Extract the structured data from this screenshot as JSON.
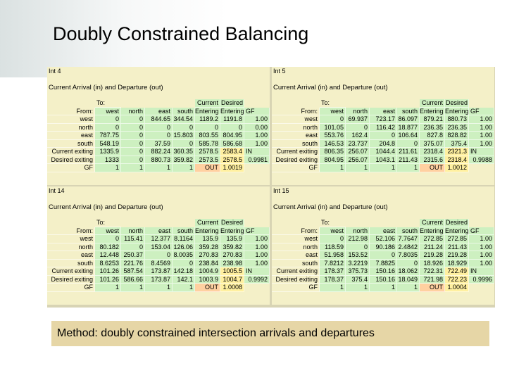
{
  "title": "Doubly Constrained Balancing",
  "footer": "Method: doubly constrained intersection arrivals and departures",
  "panels": [
    {
      "label": "Int 4",
      "subtitle": "Current Arrival (in) and Departure (out)",
      "header_top": {
        "to": "To:",
        "current": "Current",
        "desired": "Desired"
      },
      "columns": [
        "From:",
        "west",
        "north",
        "east",
        "south",
        "Entering",
        "Entering",
        "GF"
      ],
      "rows": [
        [
          "west",
          "0",
          "0",
          "844.65",
          "344.54",
          "1189.2",
          "1191.8",
          "1.00"
        ],
        [
          "north",
          "0",
          "0",
          "0",
          "0",
          "0",
          "0",
          "0.00"
        ],
        [
          "east",
          "787.75",
          "0",
          "0",
          "15.803",
          "803.55",
          "804.95",
          "1.00"
        ],
        [
          "south",
          "548.19",
          "0",
          "37.59",
          "0",
          "585.78",
          "586.68",
          "1.00"
        ],
        [
          "Current exiting",
          "1335.9",
          "0",
          "882.24",
          "360.35",
          "2578.5",
          "2583.4",
          "IN"
        ],
        [
          "Desired exiting",
          "1333",
          "0",
          "880.73",
          "359.82",
          "2573.5",
          "2578.5",
          "0.9981"
        ],
        [
          "GF",
          "1",
          "1",
          "1",
          "1",
          "OUT",
          "1.0019"
        ]
      ]
    },
    {
      "label": "Int 5",
      "subtitle": "Current Arrival (in) and Departure (out)",
      "header_top": {
        "to": "To:",
        "current": "Current",
        "desired": "Desired"
      },
      "columns": [
        "From:",
        "west",
        "north",
        "east",
        "south",
        "Entering",
        "Entering",
        "GF"
      ],
      "rows": [
        [
          "west",
          "0",
          "69.937",
          "723.17",
          "86.097",
          "879.21",
          "880.73",
          "1.00"
        ],
        [
          "north",
          "101.05",
          "0",
          "116.42",
          "18.877",
          "236.35",
          "236.35",
          "1.00"
        ],
        [
          "east",
          "553.76",
          "162.4",
          "0",
          "106.64",
          "827.8",
          "828.82",
          "1.00"
        ],
        [
          "south",
          "146.53",
          "23.737",
          "204.8",
          "0",
          "375.07",
          "375.4",
          "1.00"
        ],
        [
          "Current exiting",
          "806.35",
          "256.07",
          "1044.4",
          "211.61",
          "2318.4",
          "2321.3",
          "IN"
        ],
        [
          "Desired exiting",
          "804.95",
          "256.07",
          "1043.1",
          "211.43",
          "2315.6",
          "2318.4",
          "0.9988"
        ],
        [
          "GF",
          "1",
          "1",
          "1",
          "1",
          "OUT",
          "1.0012"
        ]
      ]
    },
    {
      "label": "Int 14",
      "subtitle": "Current Arrival (in) and Departure (out)",
      "header_top": {
        "to": "To:",
        "current": "Current",
        "desired": "Desired"
      },
      "columns": [
        "From:",
        "west",
        "north",
        "east",
        "south",
        "Entering",
        "Entering",
        "GF"
      ],
      "rows": [
        [
          "west",
          "0",
          "115.41",
          "12.377",
          "8.1164",
          "135.9",
          "135.9",
          "1.00"
        ],
        [
          "north",
          "80.182",
          "0",
          "153.04",
          "126.06",
          "359.28",
          "359.82",
          "1.00"
        ],
        [
          "east",
          "12.448",
          "250.37",
          "0",
          "8.0035",
          "270.83",
          "270.83",
          "1.00"
        ],
        [
          "south",
          "8.6253",
          "221.76",
          "8.4569",
          "0",
          "238.84",
          "238.98",
          "1.00"
        ],
        [
          "Current exiting",
          "101.26",
          "587.54",
          "173.87",
          "142.18",
          "1004.9",
          "1005.5",
          "IN"
        ],
        [
          "Desired exiting",
          "101.26",
          "586.66",
          "173.87",
          "142.1",
          "1003.9",
          "1004.7",
          "0.9992"
        ],
        [
          "GF",
          "1",
          "1",
          "1",
          "1",
          "OUT",
          "1.0008"
        ]
      ]
    },
    {
      "label": "Int 15",
      "subtitle": "Current Arrival (in) and Departure (out)",
      "header_top": {
        "to": "To:",
        "current": "Current",
        "desired": "Desired"
      },
      "columns": [
        "From:",
        "west",
        "north",
        "east",
        "south",
        "Entering",
        "Entering",
        "GF"
      ],
      "rows": [
        [
          "west",
          "0",
          "212.98",
          "52.106",
          "7.7647",
          "272.85",
          "272.85",
          "1.00"
        ],
        [
          "north",
          "118.59",
          "0",
          "90.186",
          "2.4842",
          "211.24",
          "211.43",
          "1.00"
        ],
        [
          "east",
          "51.958",
          "153.52",
          "0",
          "7.8035",
          "219.28",
          "219.28",
          "1.00"
        ],
        [
          "south",
          "7.8212",
          "3.2219",
          "7.8825",
          "0",
          "18.926",
          "18.929",
          "1.00"
        ],
        [
          "Current exiting",
          "178.37",
          "375.73",
          "150.16",
          "18.062",
          "722.31",
          "722.49",
          "IN"
        ],
        [
          "Desired exiting",
          "178.37",
          "375.4",
          "150.16",
          "18.049",
          "721.98",
          "722.23",
          "0.9996"
        ],
        [
          "GF",
          "1",
          "1",
          "1",
          "1",
          "OUT",
          "1.0004"
        ]
      ]
    }
  ]
}
